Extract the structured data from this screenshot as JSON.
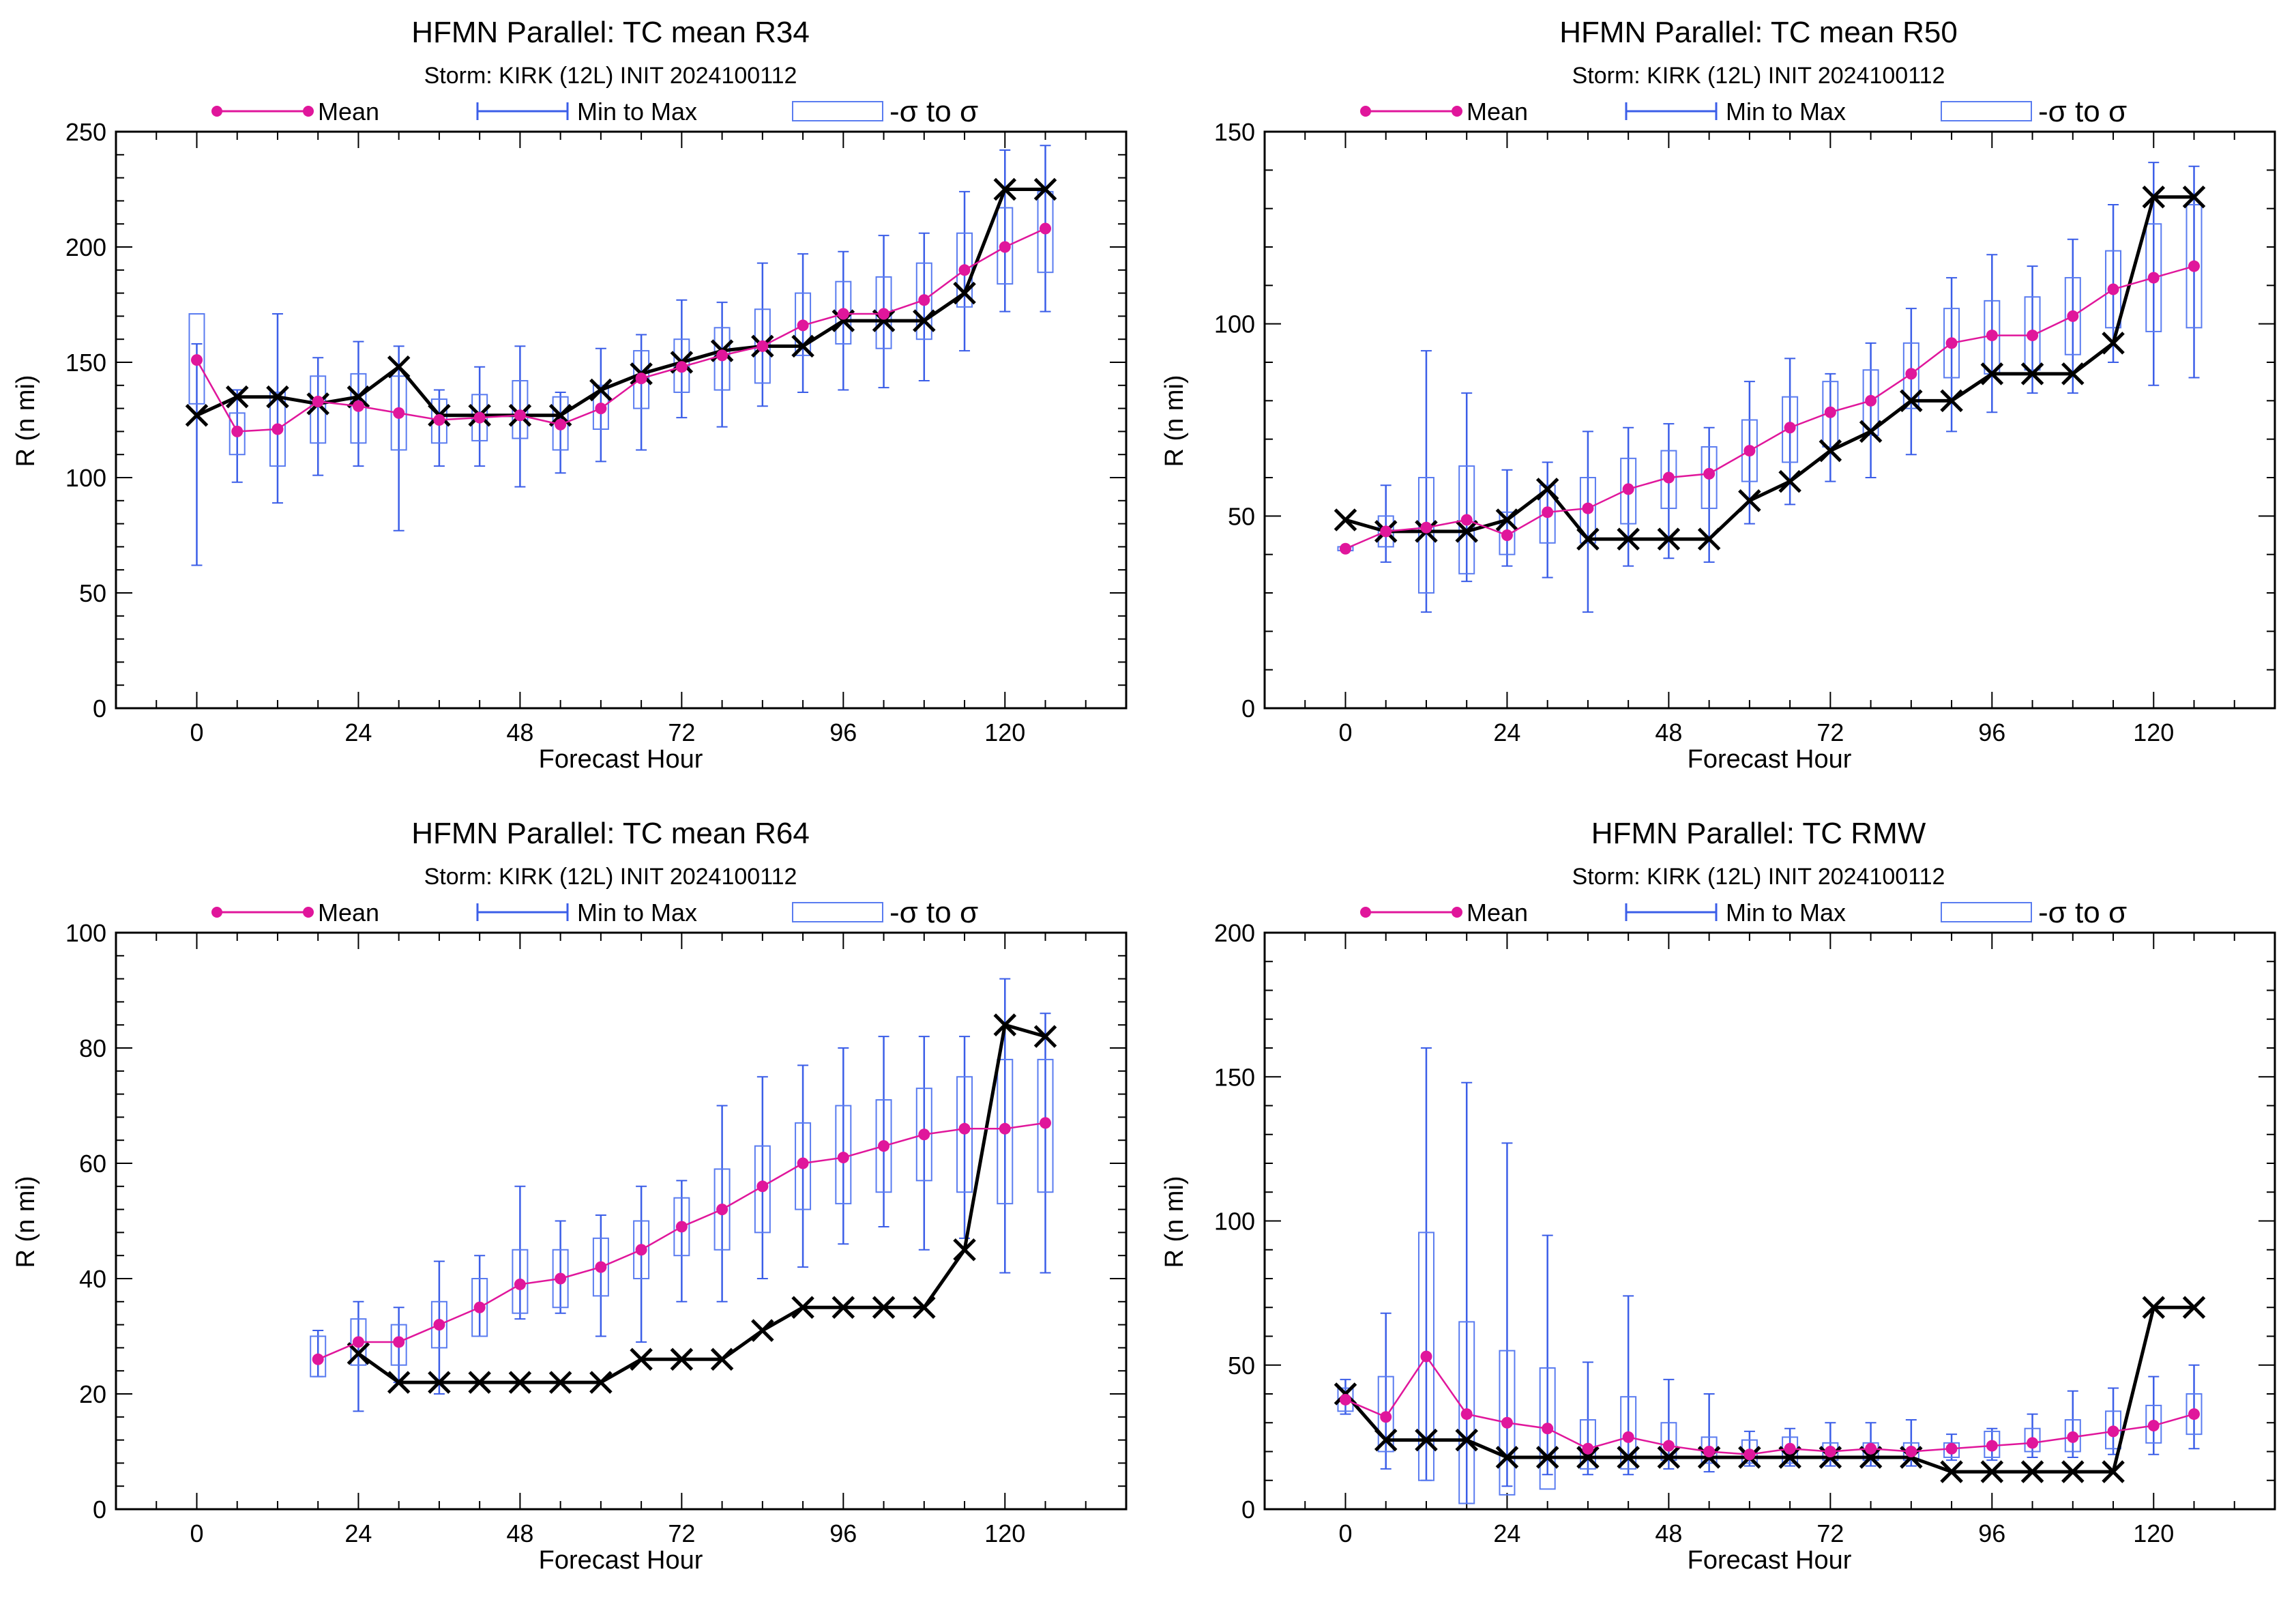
{
  "colors": {
    "mean": "#e0169b",
    "range": "#3b5ee8",
    "box": "#5a7cf0",
    "hwrf": "#000000",
    "axis": "#000000"
  },
  "legend": {
    "mean_label": "Mean",
    "range_label": "Min to Max",
    "sigma_label": "-σ to σ"
  },
  "chart_data": [
    {
      "type": "box",
      "title": "HFMN Parallel: TC mean R34",
      "subtitle": "Storm: KIRK (12L) INIT 2024100112",
      "xlabel": "Forecast Hour",
      "ylabel": "R (n mi)",
      "xlim": [
        -12,
        138
      ],
      "ylim": [
        0,
        250
      ],
      "xticks": [
        0,
        24,
        48,
        72,
        96,
        120
      ],
      "yticks": [
        0,
        50,
        100,
        150,
        200,
        250
      ],
      "grid": false,
      "legend_position": "top",
      "hours": [
        0,
        6,
        12,
        18,
        24,
        30,
        36,
        42,
        48,
        54,
        60,
        66,
        72,
        78,
        84,
        90,
        96,
        102,
        108,
        114,
        120,
        126
      ],
      "mean": [
        151,
        120,
        121,
        133,
        131,
        128,
        125,
        126,
        127,
        123,
        130,
        143,
        148,
        153,
        157,
        166,
        171,
        171,
        177,
        190,
        200,
        208
      ],
      "min": [
        62,
        98,
        89,
        101,
        105,
        77,
        105,
        105,
        96,
        102,
        107,
        112,
        126,
        122,
        131,
        137,
        138,
        139,
        142,
        155,
        172,
        172
      ],
      "max": [
        158,
        138,
        171,
        152,
        159,
        157,
        138,
        148,
        157,
        137,
        156,
        162,
        177,
        176,
        193,
        197,
        198,
        205,
        206,
        224,
        242,
        244
      ],
      "box_low": [
        132,
        110,
        105,
        115,
        115,
        112,
        115,
        116,
        117,
        112,
        121,
        130,
        137,
        138,
        141,
        153,
        158,
        156,
        160,
        174,
        184,
        189
      ],
      "box_high": [
        171,
        128,
        137,
        144,
        145,
        144,
        134,
        136,
        142,
        135,
        140,
        155,
        160,
        165,
        173,
        180,
        185,
        187,
        193,
        206,
        217,
        224
      ],
      "hwrf_hours": [
        0,
        6,
        12,
        18,
        24,
        30,
        36,
        42,
        48,
        54,
        60,
        66,
        72,
        78,
        84,
        90,
        96,
        102,
        108,
        114,
        120,
        126
      ],
      "hwrf": [
        127,
        135,
        135,
        132,
        135,
        148,
        127,
        127,
        127,
        127,
        138,
        145,
        150,
        155,
        157,
        157,
        168,
        168,
        168,
        180,
        225,
        225
      ]
    },
    {
      "type": "box",
      "title": "HFMN Parallel: TC mean R50",
      "subtitle": "Storm: KIRK (12L) INIT 2024100112",
      "xlabel": "Forecast Hour",
      "ylabel": "R (n mi)",
      "xlim": [
        -12,
        138
      ],
      "ylim": [
        0,
        150
      ],
      "xticks": [
        0,
        24,
        48,
        72,
        96,
        120
      ],
      "yticks": [
        0,
        50,
        100,
        150
      ],
      "grid": false,
      "legend_position": "top",
      "hours": [
        0,
        6,
        12,
        18,
        24,
        30,
        36,
        42,
        48,
        54,
        60,
        66,
        72,
        78,
        84,
        90,
        96,
        102,
        108,
        114,
        120,
        126
      ],
      "mean": [
        41.5,
        46,
        47,
        49,
        45,
        51,
        52,
        57,
        60,
        61,
        67,
        73,
        77,
        80,
        87,
        95,
        97,
        97,
        102,
        109,
        112,
        115
      ],
      "min": [
        41,
        38,
        25,
        33,
        37,
        34,
        25,
        37,
        39,
        38,
        48,
        53,
        59,
        60,
        66,
        72,
        77,
        82,
        82,
        90,
        84,
        86
      ],
      "max": [
        42,
        58,
        93,
        82,
        62,
        64,
        72,
        73,
        74,
        73,
        85,
        91,
        87,
        95,
        104,
        112,
        118,
        115,
        122,
        131,
        142,
        141
      ],
      "box_low": [
        41,
        42,
        30,
        35,
        40,
        43,
        43,
        48,
        52,
        52,
        59,
        64,
        68,
        71,
        78,
        86,
        87,
        88,
        92,
        99,
        98,
        99
      ],
      "box_high": [
        42,
        50,
        60,
        63,
        51,
        58,
        60,
        65,
        67,
        68,
        75,
        81,
        85,
        88,
        95,
        104,
        106,
        107,
        112,
        119,
        126,
        131
      ],
      "hwrf_hours": [
        0,
        6,
        12,
        18,
        24,
        30,
        36,
        42,
        48,
        54,
        60,
        66,
        72,
        78,
        84,
        90,
        96,
        102,
        108,
        114,
        120,
        126
      ],
      "hwrf": [
        49,
        46,
        46,
        46,
        49,
        57,
        44,
        44,
        44,
        44,
        54,
        59,
        67,
        72,
        80,
        80,
        87,
        87,
        87,
        95,
        133,
        133
      ]
    },
    {
      "type": "box",
      "title": "HFMN Parallel: TC mean R64",
      "subtitle": "Storm: KIRK (12L) INIT 2024100112",
      "xlabel": "Forecast Hour",
      "ylabel": "R (n mi)",
      "xlim": [
        -12,
        138
      ],
      "ylim": [
        0,
        100
      ],
      "xticks": [
        0,
        24,
        48,
        72,
        96,
        120
      ],
      "yticks": [
        0,
        20,
        40,
        60,
        80,
        100
      ],
      "grid": false,
      "legend_position": "top",
      "hours": [
        18,
        24,
        30,
        36,
        42,
        48,
        54,
        60,
        66,
        72,
        78,
        84,
        90,
        96,
        102,
        108,
        114,
        120,
        126
      ],
      "mean": [
        26,
        29,
        29,
        32,
        35,
        39,
        40,
        42,
        45,
        49,
        52,
        56,
        60,
        61,
        63,
        65,
        66,
        66,
        67
      ],
      "min": [
        23,
        17,
        22,
        20,
        30,
        33,
        34,
        30,
        29,
        36,
        36,
        40,
        42,
        46,
        49,
        45,
        47,
        41,
        41
      ],
      "max": [
        31,
        36,
        35,
        43,
        44,
        56,
        50,
        51,
        56,
        57,
        70,
        75,
        77,
        80,
        82,
        82,
        82,
        92,
        86
      ],
      "box_low": [
        23,
        25,
        25,
        28,
        30,
        34,
        35,
        37,
        40,
        44,
        45,
        48,
        52,
        53,
        55,
        57,
        55,
        53,
        55
      ],
      "box_high": [
        30,
        33,
        32,
        36,
        40,
        45,
        45,
        47,
        50,
        54,
        59,
        63,
        67,
        70,
        71,
        73,
        75,
        78,
        78
      ],
      "hwrf_hours": [
        24,
        30,
        36,
        42,
        48,
        54,
        60,
        66,
        72,
        78,
        84,
        90,
        96,
        102,
        108,
        114,
        120,
        126
      ],
      "hwrf": [
        27,
        22,
        22,
        22,
        22,
        22,
        22,
        26,
        26,
        26,
        31,
        35,
        35,
        35,
        35,
        45,
        84,
        82
      ]
    },
    {
      "type": "box",
      "title": "HFMN Parallel: TC RMW",
      "subtitle": "Storm: KIRK (12L) INIT 2024100112",
      "xlabel": "Forecast Hour",
      "ylabel": "R (n mi)",
      "xlim": [
        -12,
        138
      ],
      "ylim": [
        0,
        200
      ],
      "xticks": [
        0,
        24,
        48,
        72,
        96,
        120
      ],
      "yticks": [
        0,
        50,
        100,
        150,
        200
      ],
      "grid": false,
      "legend_position": "top",
      "hours": [
        0,
        6,
        12,
        18,
        24,
        30,
        36,
        42,
        48,
        54,
        60,
        66,
        72,
        78,
        84,
        90,
        96,
        102,
        108,
        114,
        120,
        126
      ],
      "mean": [
        38,
        32,
        53,
        33,
        30,
        28,
        21,
        25,
        22,
        20,
        19,
        21,
        20,
        21,
        20,
        21,
        22,
        23,
        25,
        27,
        29,
        33
      ],
      "min": [
        33,
        14,
        10,
        2,
        8,
        12,
        12,
        12,
        14,
        13,
        15,
        15,
        15,
        15,
        15,
        17,
        17,
        18,
        18,
        19,
        19,
        21
      ],
      "max": [
        45,
        68,
        160,
        148,
        127,
        95,
        51,
        74,
        45,
        40,
        27,
        28,
        30,
        30,
        31,
        26,
        28,
        33,
        41,
        42,
        46,
        50
      ],
      "box_low": [
        34,
        20,
        10,
        2,
        5,
        7,
        14,
        14,
        17,
        16,
        16,
        16,
        17,
        17,
        17,
        18,
        18,
        20,
        20,
        21,
        23,
        26
      ],
      "box_high": [
        42,
        46,
        96,
        65,
        55,
        49,
        31,
        39,
        30,
        25,
        24,
        25,
        23,
        23,
        23,
        23,
        27,
        28,
        31,
        34,
        36,
        40
      ],
      "hwrf_hours": [
        0,
        6,
        12,
        18,
        24,
        30,
        36,
        42,
        48,
        54,
        60,
        66,
        72,
        78,
        84,
        90,
        96,
        102,
        108,
        114,
        120,
        126
      ],
      "hwrf": [
        40,
        24,
        24,
        24,
        18,
        18,
        18,
        18,
        18,
        18,
        18,
        18,
        18,
        18,
        18,
        13,
        13,
        13,
        13,
        13,
        70,
        70
      ]
    }
  ]
}
